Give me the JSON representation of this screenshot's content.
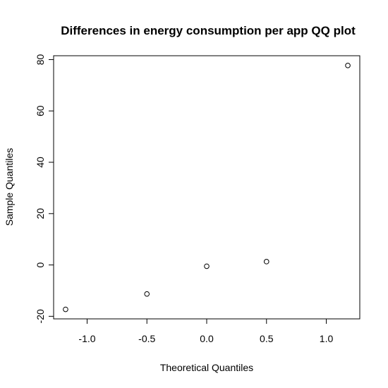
{
  "chart_data": {
    "type": "scatter",
    "title": "Differences in energy consumption per app QQ plot",
    "xlabel": "Theoretical Quantiles",
    "ylabel": "Sample Quantiles",
    "xlim": [
      -1.28,
      1.28
    ],
    "ylim": [
      -21,
      81.5
    ],
    "xticks": [
      -1.0,
      -0.5,
      0.0,
      0.5,
      1.0
    ],
    "xtick_labels": [
      "-1.0",
      "-0.5",
      "0.0",
      "0.5",
      "1.0"
    ],
    "yticks": [
      -20,
      0,
      20,
      40,
      60,
      80
    ],
    "ytick_labels": [
      "-20",
      "0",
      "20",
      "40",
      "60",
      "80"
    ],
    "grid": false,
    "legend": "none",
    "series": [
      {
        "x": [
          -1.18,
          -0.5,
          0.0,
          0.5,
          1.18
        ],
        "y": [
          -17.3,
          -11.3,
          -0.5,
          1.3,
          77.7
        ]
      }
    ],
    "marker": "open-circle",
    "colors": {
      "marker": "#000000",
      "axis": "#000000"
    }
  }
}
